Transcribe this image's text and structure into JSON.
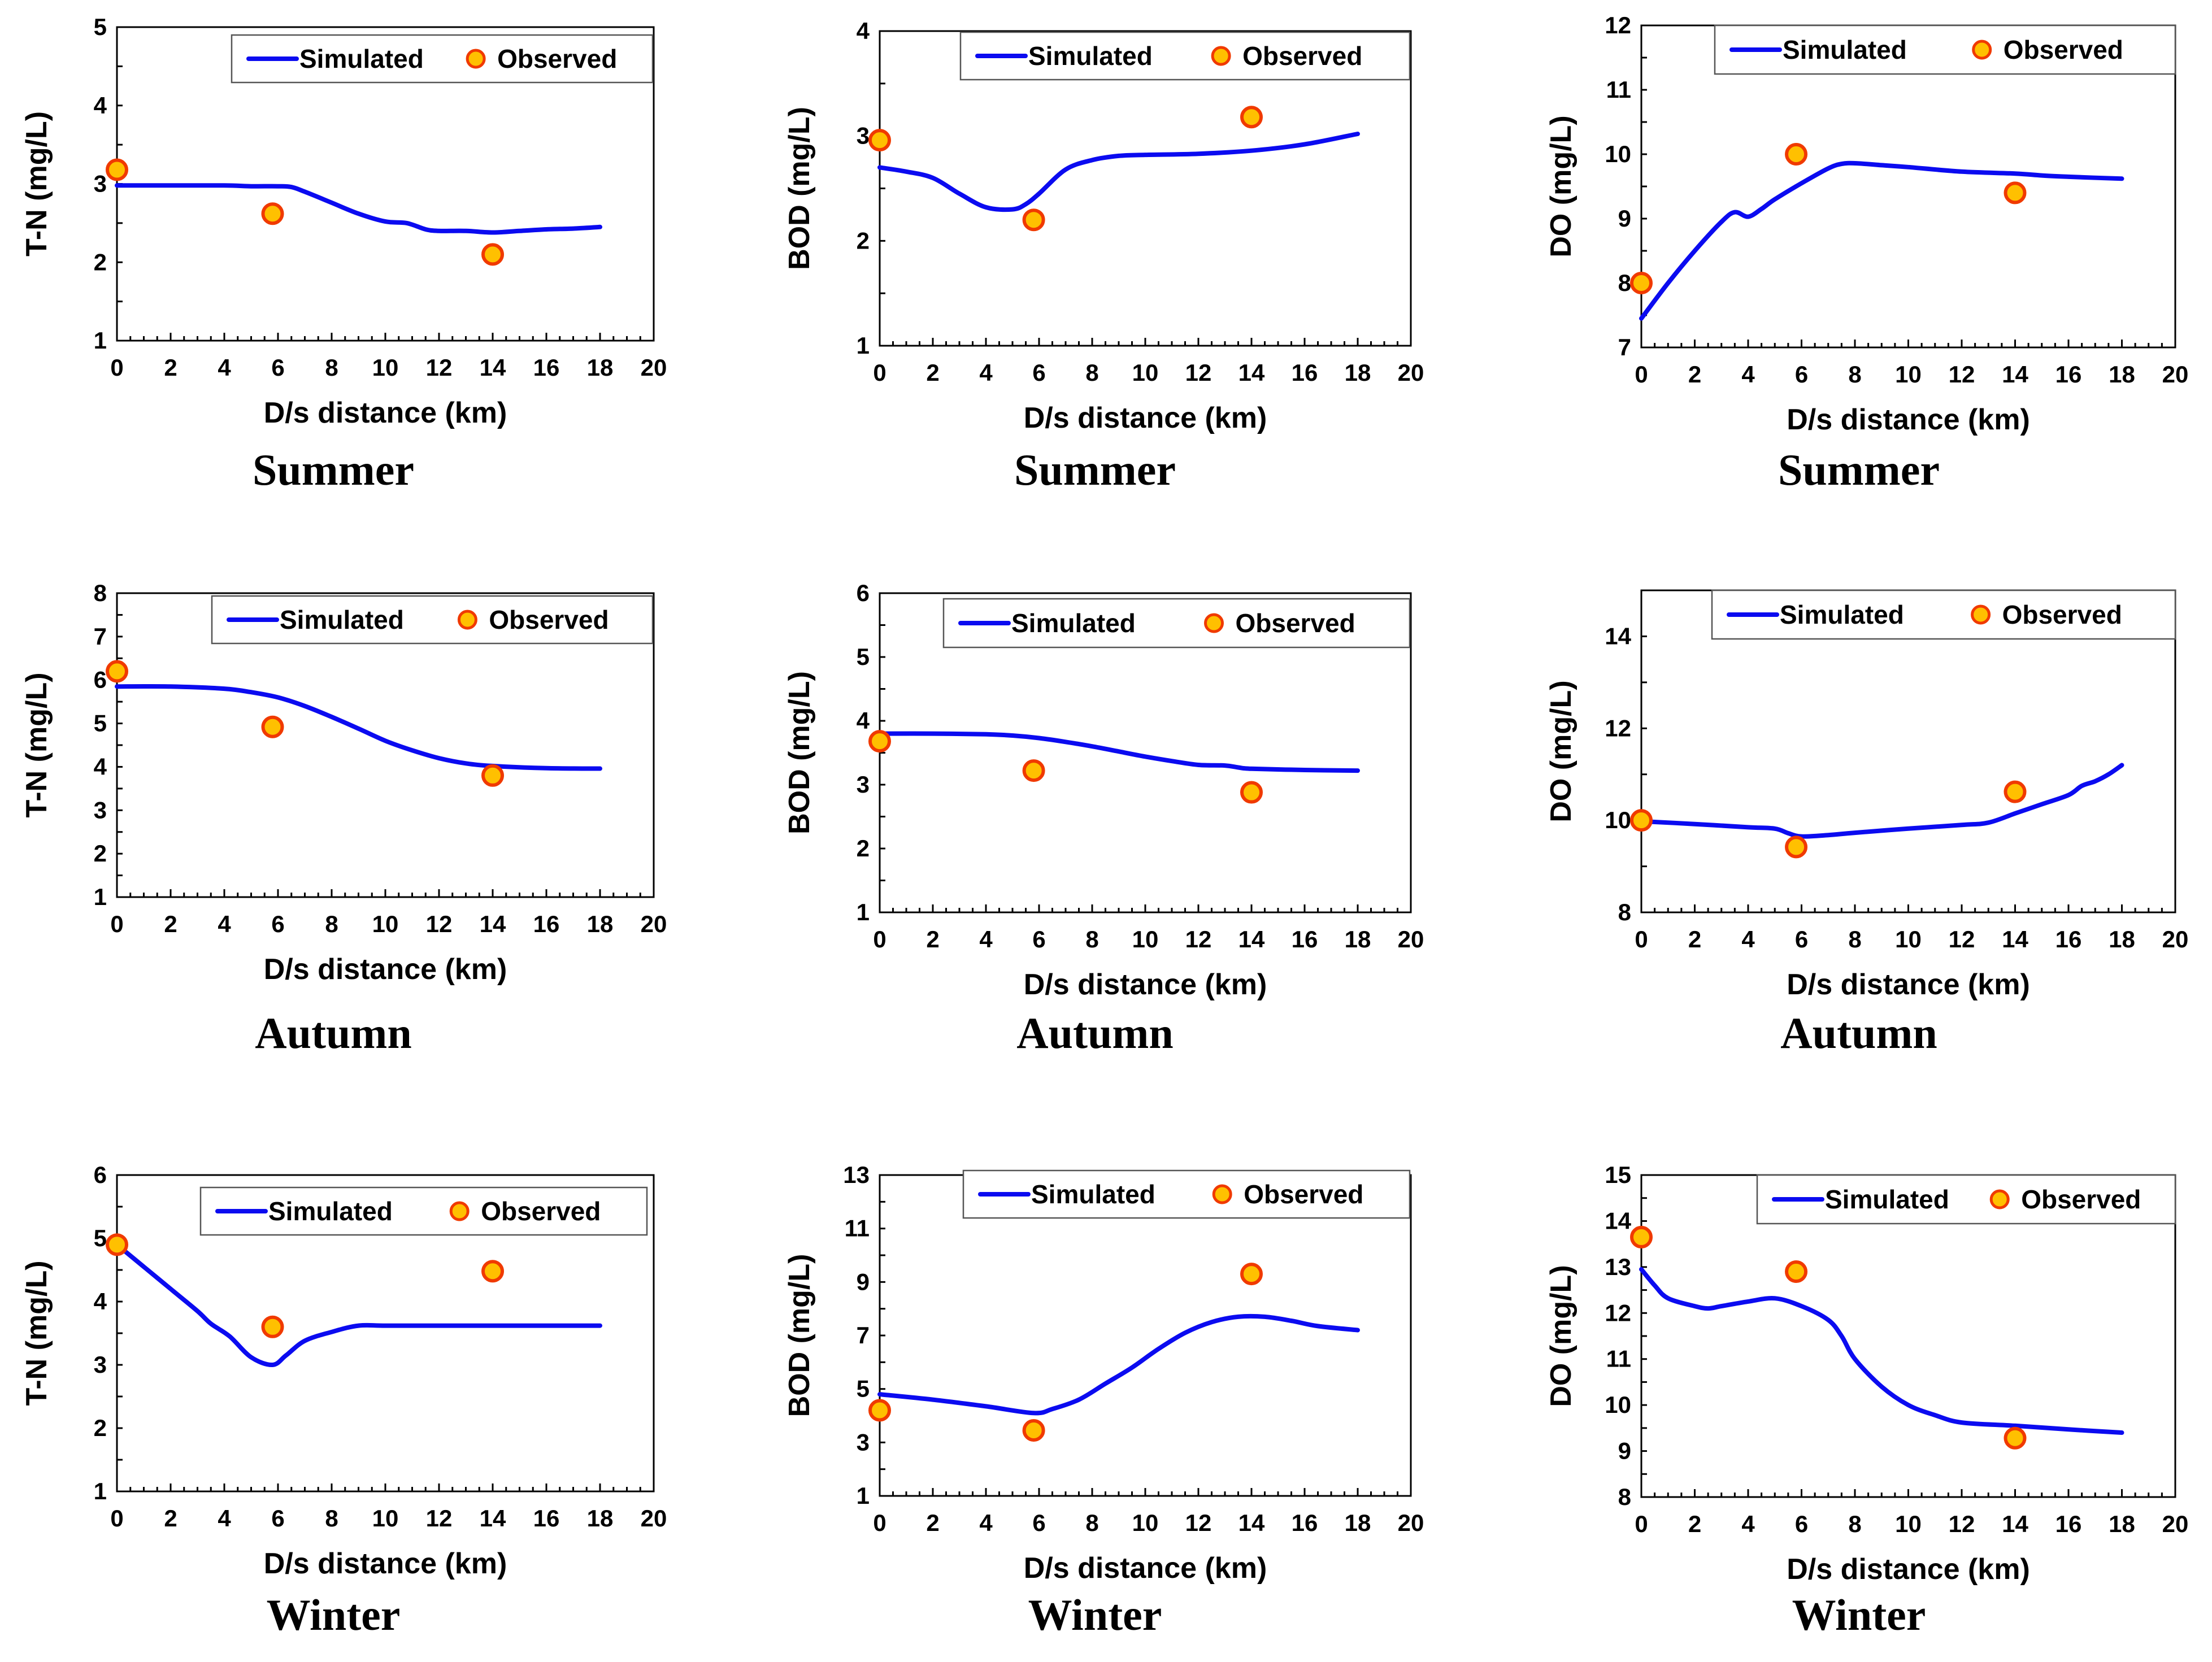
{
  "colors": {
    "simulated_line": "#0b0bf0",
    "observed_fill": "#ffc000",
    "observed_edge": "#f03a00",
    "axis": "#000000"
  },
  "legend": {
    "simulated": "Simulated",
    "observed": "Observed"
  },
  "chart_data": [
    {
      "type": "line",
      "title": "Summer",
      "xlabel": "D/s distance (km)",
      "ylabel": "T-N (mg/L)",
      "xlim": [
        0,
        20
      ],
      "ylim": [
        1,
        5
      ],
      "xticks": [
        0,
        2,
        4,
        6,
        8,
        10,
        12,
        14,
        16,
        18,
        20
      ],
      "yticks": [
        1,
        2,
        3,
        4,
        5
      ],
      "series": [
        {
          "name": "Simulated",
          "x": [
            0,
            2,
            4,
            5,
            6,
            6.5,
            7,
            8,
            9,
            10,
            10.8,
            11.5,
            12,
            13,
            14,
            15,
            16,
            17,
            18
          ],
          "y": [
            2.98,
            2.98,
            2.98,
            2.97,
            2.97,
            2.96,
            2.9,
            2.76,
            2.62,
            2.52,
            2.5,
            2.42,
            2.4,
            2.4,
            2.38,
            2.4,
            2.42,
            2.43,
            2.45
          ]
        },
        {
          "name": "Observed",
          "x": [
            0,
            5.8,
            14
          ],
          "y": [
            3.18,
            2.62,
            2.1
          ]
        }
      ]
    },
    {
      "type": "line",
      "title": "Summer",
      "xlabel": "D/s distance (km)",
      "ylabel": "BOD (mg/L)",
      "xlim": [
        0,
        20
      ],
      "ylim": [
        1,
        4
      ],
      "xticks": [
        0,
        2,
        4,
        6,
        8,
        10,
        12,
        14,
        16,
        18,
        20
      ],
      "yticks": [
        1,
        2,
        3,
        4
      ],
      "series": [
        {
          "name": "Simulated",
          "x": [
            0,
            1,
            2,
            3,
            4,
            5,
            5.5,
            6,
            7,
            8,
            9,
            10,
            12,
            14,
            16,
            18
          ],
          "y": [
            2.7,
            2.66,
            2.6,
            2.45,
            2.32,
            2.3,
            2.35,
            2.45,
            2.68,
            2.77,
            2.81,
            2.82,
            2.83,
            2.86,
            2.92,
            3.02
          ]
        },
        {
          "name": "Observed",
          "x": [
            0,
            5.8,
            14
          ],
          "y": [
            2.96,
            2.2,
            3.18
          ]
        }
      ]
    },
    {
      "type": "line",
      "title": "Summer",
      "xlabel": "D/s distance (km)",
      "ylabel": "DO (mg/L)",
      "xlim": [
        0,
        20
      ],
      "ylim": [
        7,
        12
      ],
      "xticks": [
        0,
        2,
        4,
        6,
        8,
        10,
        12,
        14,
        16,
        18,
        20
      ],
      "yticks": [
        7,
        8,
        9,
        10,
        11,
        12
      ],
      "series": [
        {
          "name": "Simulated",
          "x": [
            0,
            1,
            2,
            3,
            3.5,
            4,
            4.5,
            5,
            6,
            7,
            7.5,
            8,
            9,
            10,
            12,
            14,
            15,
            16,
            18
          ],
          "y": [
            7.45,
            8.0,
            8.5,
            8.95,
            9.1,
            9.03,
            9.15,
            9.3,
            9.55,
            9.78,
            9.85,
            9.86,
            9.83,
            9.8,
            9.73,
            9.7,
            9.67,
            9.65,
            9.62
          ]
        },
        {
          "name": "Observed",
          "x": [
            0,
            5.8,
            14
          ],
          "y": [
            8.0,
            10.0,
            9.4
          ]
        }
      ]
    },
    {
      "type": "line",
      "title": "Autumn",
      "xlabel": "D/s distance (km)",
      "ylabel": "T-N (mg/L)",
      "xlim": [
        0,
        20
      ],
      "ylim": [
        1,
        8
      ],
      "xticks": [
        0,
        2,
        4,
        6,
        8,
        10,
        12,
        14,
        16,
        18,
        20
      ],
      "yticks": [
        1,
        2,
        3,
        4,
        5,
        6,
        7,
        8
      ],
      "series": [
        {
          "name": "Simulated",
          "x": [
            0,
            2,
            4,
            5,
            6,
            7,
            8,
            9,
            10,
            11,
            12,
            13,
            14,
            16,
            18
          ],
          "y": [
            5.85,
            5.85,
            5.8,
            5.72,
            5.6,
            5.4,
            5.15,
            4.88,
            4.6,
            4.38,
            4.2,
            4.08,
            4.02,
            3.97,
            3.96
          ]
        },
        {
          "name": "Observed",
          "x": [
            0,
            5.8,
            14
          ],
          "y": [
            6.2,
            4.92,
            3.8
          ]
        }
      ]
    },
    {
      "type": "line",
      "title": "Autumn",
      "xlabel": "D/s distance (km)",
      "ylabel": "BOD (mg/L)",
      "xlim": [
        0,
        20
      ],
      "ylim": [
        1,
        6
      ],
      "xticks": [
        0,
        2,
        4,
        6,
        8,
        10,
        12,
        14,
        16,
        18,
        20
      ],
      "yticks": [
        1,
        2,
        3,
        4,
        5,
        6
      ],
      "series": [
        {
          "name": "Simulated",
          "x": [
            0,
            2,
            4,
            5,
            6,
            7,
            8,
            9,
            10,
            11,
            12,
            13,
            13.5,
            14,
            16,
            18
          ],
          "y": [
            3.8,
            3.8,
            3.79,
            3.77,
            3.73,
            3.67,
            3.6,
            3.52,
            3.44,
            3.37,
            3.31,
            3.3,
            3.27,
            3.25,
            3.23,
            3.22
          ]
        },
        {
          "name": "Observed",
          "x": [
            0,
            5.8,
            14
          ],
          "y": [
            3.68,
            3.22,
            2.88
          ]
        }
      ]
    },
    {
      "type": "line",
      "title": "Autumn",
      "xlabel": "D/s distance (km)",
      "ylabel": "DO (mg/L)",
      "xlim": [
        0,
        20
      ],
      "ylim": [
        8,
        15
      ],
      "xticks": [
        0,
        2,
        4,
        6,
        8,
        10,
        12,
        14,
        16,
        18,
        20
      ],
      "yticks": [
        8,
        10,
        12,
        14
      ],
      "series": [
        {
          "name": "Simulated",
          "x": [
            0,
            2,
            4,
            5,
            5.5,
            6,
            7,
            8,
            10,
            12,
            13,
            14,
            15,
            16,
            16.5,
            17,
            17.5,
            18
          ],
          "y": [
            9.98,
            9.92,
            9.85,
            9.82,
            9.72,
            9.65,
            9.68,
            9.73,
            9.82,
            9.9,
            9.95,
            10.15,
            10.35,
            10.55,
            10.75,
            10.85,
            11.0,
            11.2
          ]
        },
        {
          "name": "Observed",
          "x": [
            0,
            5.8,
            14
          ],
          "y": [
            10.0,
            9.42,
            10.62
          ]
        }
      ]
    },
    {
      "type": "line",
      "title": "Winter",
      "xlabel": "D/s distance (km)",
      "ylabel": "T-N (mg/L)",
      "xlim": [
        0,
        20
      ],
      "ylim": [
        1,
        6
      ],
      "xticks": [
        0,
        2,
        4,
        6,
        8,
        10,
        12,
        14,
        16,
        18,
        20
      ],
      "yticks": [
        1,
        2,
        3,
        4,
        5,
        6
      ],
      "series": [
        {
          "name": "Simulated",
          "x": [
            0,
            1,
            2,
            3,
            3.5,
            4.2,
            5,
            5.8,
            6.3,
            7,
            8,
            9,
            10,
            12,
            14,
            16,
            18
          ],
          "y": [
            4.9,
            4.55,
            4.2,
            3.85,
            3.65,
            3.45,
            3.12,
            3.0,
            3.15,
            3.38,
            3.52,
            3.62,
            3.62,
            3.62,
            3.62,
            3.62,
            3.62
          ]
        },
        {
          "name": "Observed",
          "x": [
            0,
            5.8,
            14
          ],
          "y": [
            4.9,
            3.6,
            4.48
          ]
        }
      ]
    },
    {
      "type": "line",
      "title": "Winter",
      "xlabel": "D/s distance (km)",
      "ylabel": "BOD (mg/L)",
      "xlim": [
        0,
        20
      ],
      "ylim": [
        1,
        13
      ],
      "xticks": [
        0,
        2,
        4,
        6,
        8,
        10,
        12,
        14,
        16,
        18,
        20
      ],
      "yticks": [
        1,
        3,
        5,
        7,
        9,
        11,
        13
      ],
      "series": [
        {
          "name": "Simulated",
          "x": [
            0,
            2,
            4,
            5.8,
            6.5,
            7.5,
            8.5,
            9.5,
            10.5,
            11.5,
            12.5,
            13.5,
            14.5,
            15.5,
            16.5,
            18
          ],
          "y": [
            4.8,
            4.6,
            4.35,
            4.1,
            4.25,
            4.6,
            5.2,
            5.8,
            6.5,
            7.1,
            7.5,
            7.7,
            7.7,
            7.55,
            7.35,
            7.2
          ]
        },
        {
          "name": "Observed",
          "x": [
            0,
            5.8,
            14
          ],
          "y": [
            4.2,
            3.45,
            9.3
          ]
        }
      ]
    },
    {
      "type": "line",
      "title": "Winter",
      "xlabel": "D/s distance (km)",
      "ylabel": "DO (mg/L)",
      "xlim": [
        0,
        20
      ],
      "ylim": [
        8,
        15
      ],
      "xticks": [
        0,
        2,
        4,
        6,
        8,
        10,
        12,
        14,
        16,
        18,
        20
      ],
      "yticks": [
        8,
        9,
        10,
        11,
        12,
        13,
        14,
        15
      ],
      "series": [
        {
          "name": "Simulated",
          "x": [
            0,
            0.5,
            1,
            2,
            2.5,
            3,
            4,
            5,
            6,
            7,
            7.5,
            8,
            9,
            10,
            11,
            12,
            14,
            16,
            18
          ],
          "y": [
            12.95,
            12.6,
            12.32,
            12.15,
            12.1,
            12.15,
            12.25,
            12.32,
            12.15,
            11.85,
            11.5,
            11.0,
            10.4,
            10.0,
            9.78,
            9.62,
            9.55,
            9.47,
            9.4
          ]
        },
        {
          "name": "Observed",
          "x": [
            0,
            5.8,
            14
          ],
          "y": [
            13.65,
            12.9,
            9.28
          ]
        }
      ]
    }
  ]
}
